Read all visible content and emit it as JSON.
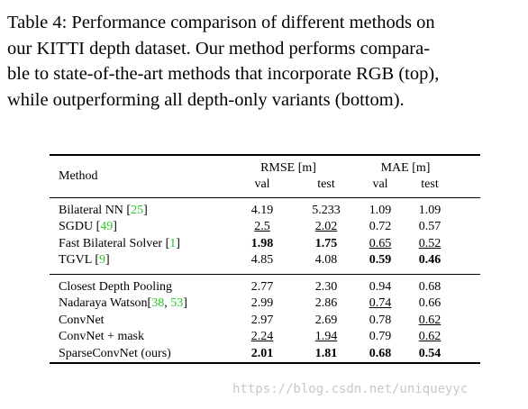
{
  "caption": {
    "lines": [
      "Table 4:  Performance comparison of different methods on",
      "our KITTI depth dataset.  Our method performs compara-",
      "ble to state-of-the-art methods that incorporate RGB (top),",
      "while outperforming all depth-only variants (bottom)."
    ]
  },
  "table": {
    "header": {
      "method": "Method",
      "groups": [
        "RMSE [m]",
        "MAE [m]"
      ],
      "subcolumns": [
        "val",
        "test",
        "val",
        "test"
      ]
    },
    "row_groups": [
      [
        {
          "method": "Bilateral NN [25]",
          "values": [
            "4.19",
            "5.233",
            "1.09",
            "1.09"
          ],
          "bold": [],
          "underline": []
        },
        {
          "method": "SGDU [49]",
          "values": [
            "2.5",
            "2.02",
            "0.72",
            "0.57"
          ],
          "bold": [],
          "underline": [
            0,
            1
          ]
        },
        {
          "method": "Fast Bilateral Solver [1]",
          "values": [
            "1.98",
            "1.75",
            "0.65",
            "0.52"
          ],
          "bold": [
            0,
            1
          ],
          "underline": [
            2,
            3
          ]
        },
        {
          "method": "TGVL [9]",
          "values": [
            "4.85",
            "4.08",
            "0.59",
            "0.46"
          ],
          "bold": [
            2,
            3
          ],
          "underline": []
        }
      ],
      [
        {
          "method": "Closest Depth Pooling",
          "values": [
            "2.77",
            "2.30",
            "0.94",
            "0.68"
          ],
          "bold": [],
          "underline": []
        },
        {
          "method": "Nadaraya Watson[38, 53]",
          "values": [
            "2.99",
            "2.86",
            "0.74",
            "0.66"
          ],
          "bold": [],
          "underline": [
            2
          ]
        },
        {
          "method": "ConvNet",
          "values": [
            "2.97",
            "2.69",
            "0.78",
            "0.62"
          ],
          "bold": [],
          "underline": [
            3
          ]
        },
        {
          "method": "ConvNet + mask",
          "values": [
            "2.24",
            "1.94",
            "0.79",
            "0.62"
          ],
          "bold": [],
          "underline": [
            0,
            1,
            3
          ]
        },
        {
          "method": "SparseConvNet (ours)",
          "values": [
            "2.01",
            "1.81",
            "0.68",
            "0.54"
          ],
          "bold": [
            0,
            1,
            2,
            3
          ],
          "underline": []
        }
      ]
    ],
    "ref_color": "#22cc22"
  },
  "watermark": "https://blog.csdn.net/uniqueyyc"
}
